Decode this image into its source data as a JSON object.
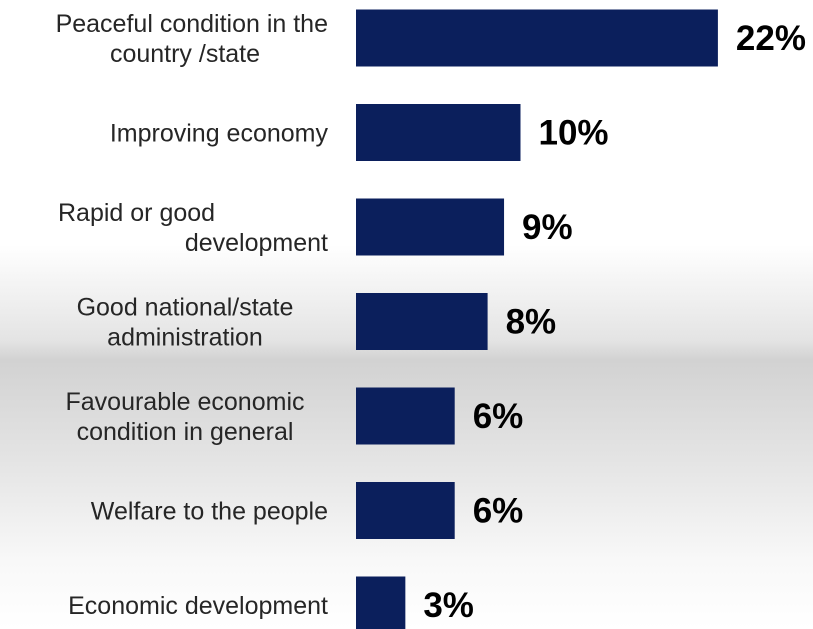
{
  "chart_data": {
    "type": "bar",
    "orientation": "horizontal",
    "categories": [
      [
        "Peaceful condition in the",
        "country /state"
      ],
      [
        "Improving economy"
      ],
      [
        "Rapid or good",
        "development"
      ],
      [
        "Good national/state",
        "administration"
      ],
      [
        "Favourable economic",
        "condition in general"
      ],
      [
        "Welfare to the people"
      ],
      [
        "Economic development"
      ]
    ],
    "values": [
      22,
      10,
      9,
      8,
      6,
      6,
      3
    ],
    "value_labels": [
      "22%",
      "10%",
      "9%",
      "8%",
      "6%",
      "6%",
      "3%"
    ],
    "unit": "%",
    "bar_color": "#0b1f5c",
    "grid": false,
    "legend": "none"
  }
}
